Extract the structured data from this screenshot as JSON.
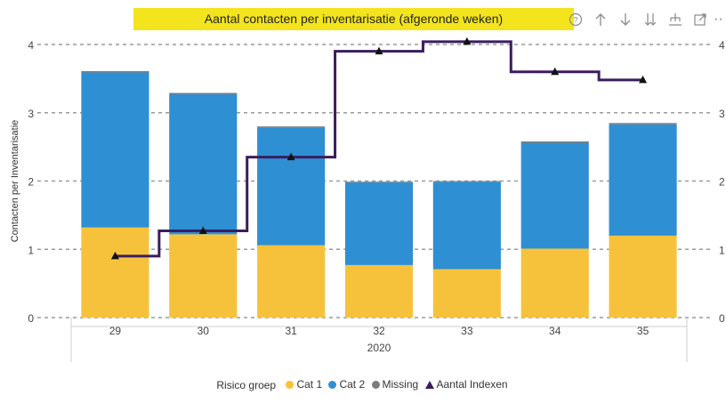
{
  "title": "Aantal contacten per inventarisatie (afgeronde weken)",
  "toolbar": {
    "icons": [
      "help-icon",
      "sort-up-icon",
      "sort-down-icon",
      "drill-down-icon",
      "expand-hierarchy-icon",
      "focus-mode-icon",
      "more-options-icon"
    ],
    "more_label": "··"
  },
  "legend": {
    "title": "Risico groep",
    "items": [
      {
        "label": "Cat 1",
        "color": "#f7c23b",
        "shape": "circle"
      },
      {
        "label": "Cat 2",
        "color": "#2e8fd3",
        "shape": "circle"
      },
      {
        "label": "Missing",
        "color": "#7b7b7b",
        "shape": "circle"
      },
      {
        "label": "Aantal Indexen",
        "color": "#3b1d5e",
        "shape": "triangle"
      }
    ]
  },
  "colors": {
    "cat1": "#f7c23b",
    "cat2": "#2e8fd3",
    "line": "#3b1d5e",
    "grid": "#9a9a9a"
  },
  "chart_data": {
    "type": "bar",
    "stacked": true,
    "categories": [
      "29",
      "30",
      "31",
      "32",
      "33",
      "34",
      "35"
    ],
    "x_group_label": "2020",
    "ylabel": "Contacten per Inventarisatie",
    "ylim": [
      0,
      4
    ],
    "yticks": [
      0,
      1,
      2,
      3,
      4
    ],
    "y2lim": [
      0,
      4
    ],
    "y2ticks": [
      0,
      1,
      2,
      3,
      4
    ],
    "grid": true,
    "series": [
      {
        "name": "Cat 1",
        "type": "bar",
        "values": [
          1.32,
          1.22,
          1.06,
          0.77,
          0.71,
          1.01,
          1.2
        ]
      },
      {
        "name": "Cat 2",
        "type": "bar",
        "values": [
          2.27,
          2.05,
          1.72,
          1.21,
          1.28,
          1.55,
          1.63
        ]
      },
      {
        "name": "Missing",
        "type": "bar",
        "values": [
          0.02,
          0.02,
          0.02,
          0.01,
          0.01,
          0.02,
          0.02
        ]
      },
      {
        "name": "Aantal Indexen",
        "type": "step-line",
        "axis": "secondary",
        "values": [
          0.9,
          1.27,
          2.35,
          3.9,
          4.04,
          3.6,
          3.48
        ]
      }
    ],
    "legend_position": "bottom"
  }
}
